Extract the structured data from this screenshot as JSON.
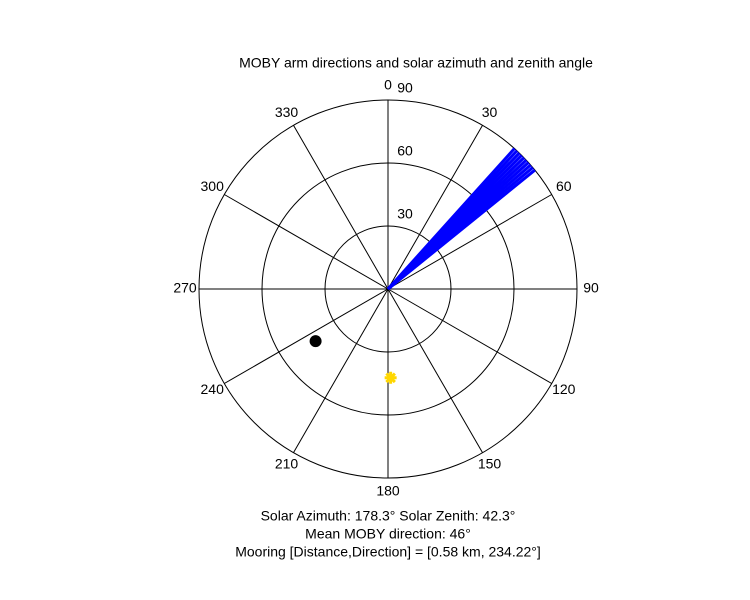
{
  "chart_data": {
    "type": "polar",
    "title": "MOBY arm directions and solar azimuth and zenith angle",
    "rlim": [
      0,
      90
    ],
    "rticks": [
      30,
      60,
      90
    ],
    "thetaticks": [
      0,
      30,
      60,
      90,
      120,
      150,
      180,
      210,
      240,
      270,
      300,
      330
    ],
    "series": [
      {
        "color": "#0000ff",
        "style": "spokes",
        "theta": [
          42,
          43,
          44,
          45,
          46,
          47,
          48,
          49,
          50,
          51
        ],
        "r": [
          90,
          90,
          90,
          90,
          90,
          90,
          90,
          90,
          90,
          90
        ]
      },
      {
        "color": "#000000",
        "style": "dot",
        "theta": [
          234.22
        ],
        "r": [
          42.5
        ]
      },
      {
        "color": "#ffd700",
        "style": "star",
        "theta": [
          178.3
        ],
        "r": [
          42.3
        ]
      }
    ],
    "annotations": [
      "Solar Azimuth: 178.3°   Solar Zenith: 42.3°",
      "Mean MOBY direction: 46°",
      "Mooring [Distance,Direction] = [0.58 km, 234.22°]"
    ]
  }
}
